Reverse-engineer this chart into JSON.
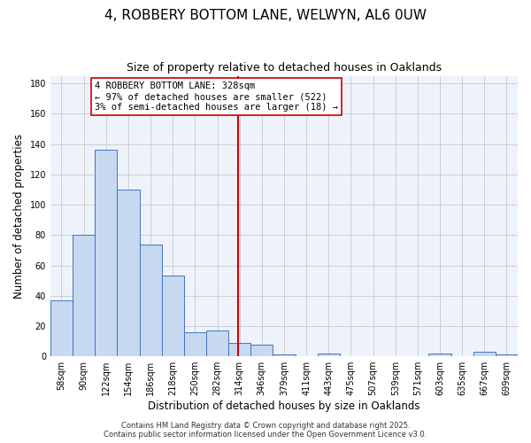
{
  "title": "4, ROBBERY BOTTOM LANE, WELWYN, AL6 0UW",
  "subtitle": "Size of property relative to detached houses in Oaklands",
  "xlabel": "Distribution of detached houses by size in Oaklands",
  "ylabel": "Number of detached properties",
  "bin_labels": [
    "58sqm",
    "90sqm",
    "122sqm",
    "154sqm",
    "186sqm",
    "218sqm",
    "250sqm",
    "282sqm",
    "314sqm",
    "346sqm",
    "379sqm",
    "411sqm",
    "443sqm",
    "475sqm",
    "507sqm",
    "539sqm",
    "571sqm",
    "603sqm",
    "635sqm",
    "667sqm",
    "699sqm"
  ],
  "bar_values": [
    37,
    80,
    136,
    110,
    74,
    53,
    16,
    17,
    9,
    8,
    1,
    0,
    2,
    0,
    0,
    0,
    0,
    2,
    0,
    3,
    1
  ],
  "bar_color": "#c6d9f1",
  "bar_edge_color": "#4472c4",
  "grid_color": "#c0c0c0",
  "background_color": "#eef3fb",
  "vline_color": "#cc0000",
  "annotation_text": "4 ROBBERY BOTTOM LANE: 328sqm\n← 97% of detached houses are smaller (522)\n3% of semi-detached houses are larger (18) →",
  "annotation_box_edge": "#cc0000",
  "annotation_box_face": "white",
  "footer_line1": "Contains HM Land Registry data © Crown copyright and database right 2025.",
  "footer_line2": "Contains public sector information licensed under the Open Government Licence v3.0.",
  "ylim": [
    0,
    185
  ],
  "yticks": [
    0,
    20,
    40,
    60,
    80,
    100,
    120,
    140,
    160,
    180
  ],
  "title_fontsize": 11,
  "subtitle_fontsize": 9,
  "xlabel_fontsize": 8.5,
  "ylabel_fontsize": 8.5,
  "tick_fontsize": 7,
  "annotation_fontsize": 7.5,
  "footer_fontsize": 6
}
